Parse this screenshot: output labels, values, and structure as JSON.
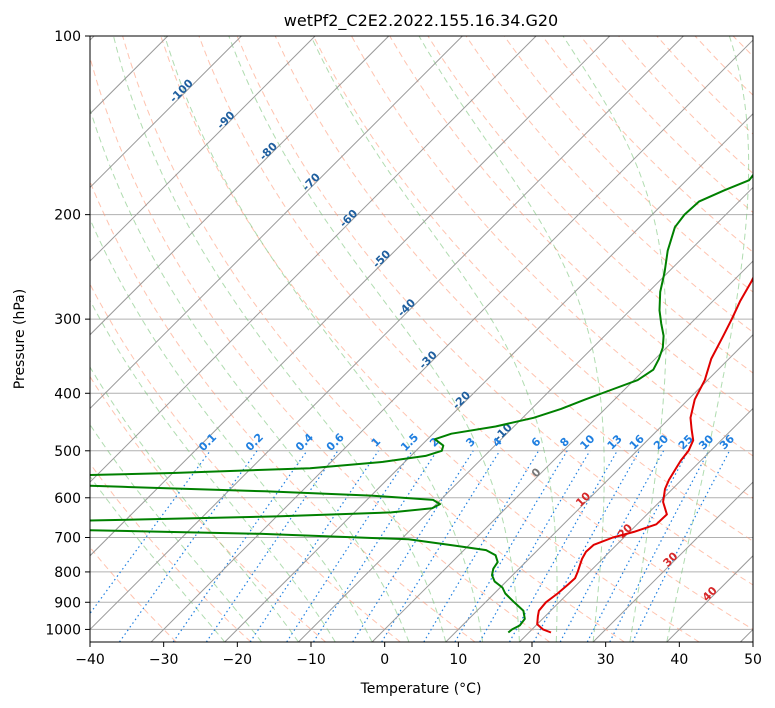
{
  "chart_data": {
    "type": "skew-t",
    "title": "wetPf2_C2E2.2022.155.16.34.G20",
    "xlabel": "Temperature (°C)",
    "ylabel": "Pressure (hPa)",
    "xlim": [
      -40,
      50
    ],
    "ylim": [
      1050,
      100
    ],
    "x_ticks": [
      -40,
      -30,
      -20,
      -10,
      0,
      10,
      20,
      30,
      40,
      50
    ],
    "x_tick_labels": [
      "−40",
      "−30",
      "−20",
      "−10",
      "0",
      "10",
      "20",
      "30",
      "40",
      "50"
    ],
    "y_ticks": [
      100,
      200,
      300,
      400,
      500,
      600,
      700,
      800,
      900,
      1000
    ],
    "y_tick_labels": [
      "100",
      "200",
      "300",
      "400",
      "500",
      "600",
      "700",
      "800",
      "900",
      "1000"
    ],
    "isotherm_labels": [
      {
        "t": -100,
        "text": "-100"
      },
      {
        "t": -90,
        "text": "-90"
      },
      {
        "t": -80,
        "text": "-80"
      },
      {
        "t": -70,
        "text": "-70"
      },
      {
        "t": -60,
        "text": "-60"
      },
      {
        "t": -50,
        "text": "-50"
      },
      {
        "t": -40,
        "text": "-40"
      },
      {
        "t": -30,
        "text": "-30"
      },
      {
        "t": -20,
        "text": "-20"
      },
      {
        "t": -10,
        "text": "-10"
      }
    ],
    "mixing_ratio_labels": [
      "0.1",
      "0.2",
      "0.4",
      "0.6",
      "1",
      "1.5",
      "2",
      "3",
      "4",
      "6",
      "8",
      "10",
      "13",
      "16",
      "20",
      "25",
      "30",
      "36"
    ],
    "warm_isotherm_labels": [
      {
        "t": 0,
        "text": "0"
      },
      {
        "t": 10,
        "text": "10"
      },
      {
        "t": 20,
        "text": "20"
      },
      {
        "t": 30,
        "text": "30"
      },
      {
        "t": 40,
        "text": "40"
      }
    ],
    "series": [
      {
        "name": "temperature",
        "color": "#e00000",
        "points": [
          [
            1012,
            23.0
          ],
          [
            1000,
            21.5
          ],
          [
            980,
            20.0
          ],
          [
            950,
            19.0
          ],
          [
            930,
            18.4
          ],
          [
            900,
            18.2
          ],
          [
            870,
            18.6
          ],
          [
            840,
            18.8
          ],
          [
            820,
            18.9
          ],
          [
            800,
            18.4
          ],
          [
            780,
            17.8
          ],
          [
            760,
            17.2
          ],
          [
            740,
            16.8
          ],
          [
            720,
            16.9
          ],
          [
            700,
            18.5
          ],
          [
            685,
            20.6
          ],
          [
            665,
            22.6
          ],
          [
            640,
            22.7
          ],
          [
            610,
            20.5
          ],
          [
            580,
            19.0
          ],
          [
            560,
            18.3
          ],
          [
            540,
            17.8
          ],
          [
            520,
            17.3
          ],
          [
            500,
            17.0
          ],
          [
            480,
            16.2
          ],
          [
            460,
            14.5
          ],
          [
            440,
            12.8
          ],
          [
            410,
            10.9
          ],
          [
            380,
            9.6
          ],
          [
            350,
            7.6
          ],
          [
            320,
            6.1
          ],
          [
            300,
            5.0
          ],
          [
            280,
            3.7
          ],
          [
            260,
            2.6
          ],
          [
            240,
            1.2
          ],
          [
            220,
            -0.4
          ],
          [
            205,
            -1.7
          ],
          [
            195,
            -2.1
          ],
          [
            190,
            -1.8
          ],
          [
            180,
            0.4
          ],
          [
            170,
            1.8
          ],
          [
            160,
            1.6
          ],
          [
            150,
            0.3
          ],
          [
            140,
            -0.3
          ],
          [
            130,
            0.5
          ],
          [
            120,
            2.2
          ],
          [
            110,
            2.9
          ],
          [
            100,
            2.5
          ]
        ]
      },
      {
        "name": "dewpoint",
        "color": "#008000",
        "points": [
          [
            1012,
            17.2
          ],
          [
            1000,
            17.3
          ],
          [
            985,
            17.8
          ],
          [
            960,
            17.6
          ],
          [
            930,
            16.3
          ],
          [
            900,
            13.9
          ],
          [
            870,
            11.5
          ],
          [
            850,
            10.3
          ],
          [
            830,
            8.4
          ],
          [
            810,
            7.2
          ],
          [
            790,
            6.5
          ],
          [
            770,
            6.2
          ],
          [
            750,
            5.0
          ],
          [
            735,
            3.0
          ],
          [
            722,
            -2.0
          ],
          [
            705,
            -9.0
          ],
          [
            690,
            -30.0
          ],
          [
            680,
            -55.0
          ],
          [
            672,
            -70.0
          ],
          [
            665,
            -75.0
          ],
          [
            655,
            -54.0
          ],
          [
            645,
            -30.0
          ],
          [
            635,
            -15.0
          ],
          [
            625,
            -10.0
          ],
          [
            615,
            -9.5
          ],
          [
            605,
            -11.0
          ],
          [
            595,
            -20.0
          ],
          [
            585,
            -35.0
          ],
          [
            575,
            -55.0
          ],
          [
            565,
            -75.0
          ],
          [
            555,
            -75.0
          ],
          [
            545,
            -50.0
          ],
          [
            535,
            -32.0
          ],
          [
            522,
            -23.0
          ],
          [
            510,
            -18.0
          ],
          [
            500,
            -16.5
          ],
          [
            490,
            -17.0
          ],
          [
            478,
            -19.0
          ],
          [
            468,
            -17.5
          ],
          [
            455,
            -12.5
          ],
          [
            440,
            -8.5
          ],
          [
            425,
            -6.0
          ],
          [
            410,
            -4.0
          ],
          [
            395,
            -1.8
          ],
          [
            380,
            0.5
          ],
          [
            365,
            1.2
          ],
          [
            350,
            0.5
          ],
          [
            335,
            -0.5
          ],
          [
            320,
            -2.0
          ],
          [
            305,
            -4.0
          ],
          [
            290,
            -6.0
          ],
          [
            270,
            -8.4
          ],
          [
            250,
            -10.5
          ],
          [
            230,
            -13.0
          ],
          [
            210,
            -15.2
          ],
          [
            200,
            -15.6
          ],
          [
            190,
            -15.4
          ],
          [
            182,
            -13.5
          ],
          [
            175,
            -11.5
          ],
          [
            165,
            -12.0
          ],
          [
            155,
            -14.5
          ],
          [
            150,
            -15.5
          ],
          [
            140,
            -14.0
          ],
          [
            130,
            -11.5
          ],
          [
            120,
            -11.0
          ],
          [
            115,
            -12.5
          ],
          [
            110,
            -14.5
          ],
          [
            100,
            -13.0
          ]
        ]
      }
    ]
  },
  "colors": {
    "temperature": "#e00000",
    "dewpoint": "#008000",
    "isotherm": "#9a9a9a",
    "dry_adiabat": "#ff9b7a",
    "moist_adiabat": "#7cc47c",
    "mixing_ratio": "#1f7fe0",
    "isotherm_label": "#1f5f9f",
    "warm_label": "#d62728"
  }
}
